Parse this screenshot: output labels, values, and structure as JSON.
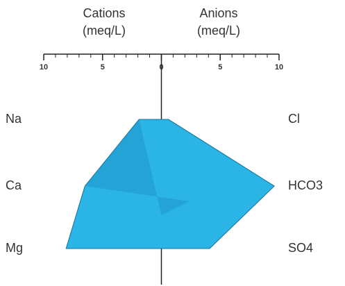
{
  "chart_data": {
    "type": "stiff",
    "left_title": "Cations",
    "left_unit": "(meq/L)",
    "right_title": "Anions",
    "right_unit": "(meq/L)",
    "xlim": [
      -10,
      10
    ],
    "xticks": [
      {
        "value": -10,
        "label": "10"
      },
      {
        "value": -5,
        "label": "5"
      },
      0,
      5,
      10
    ],
    "cations": {
      "labels": [
        "Na",
        "Ca",
        "Mg"
      ],
      "values": [
        1.9,
        6.5,
        8.1
      ]
    },
    "anions": {
      "labels": [
        "Cl",
        "HCO3",
        "SO4"
      ],
      "values": [
        0.6,
        9.6,
        4.1
      ]
    },
    "color": "#2bb4e6"
  }
}
